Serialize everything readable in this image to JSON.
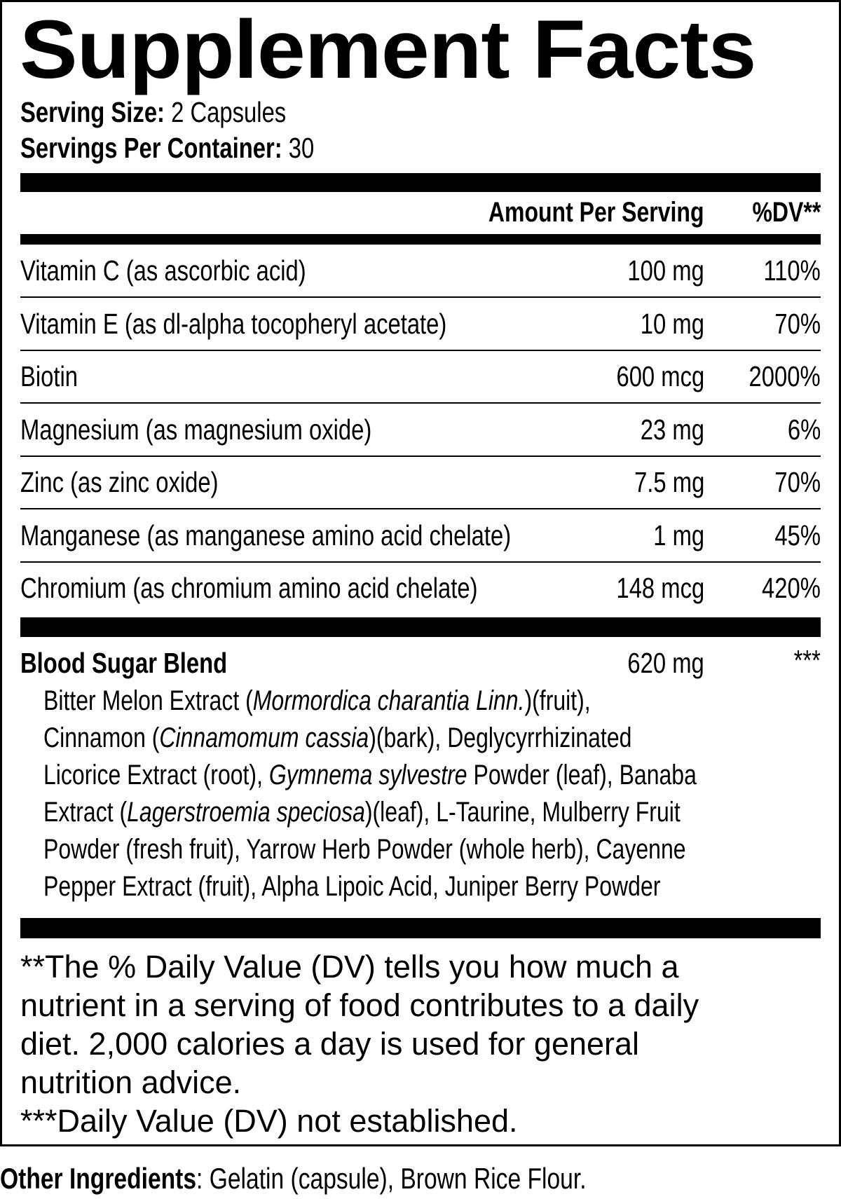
{
  "title": "Supplement Facts",
  "serving_size": {
    "label": "Serving Size:",
    "value": "2 Capsules"
  },
  "servings_per_container": {
    "label": "Servings Per Container:",
    "value": "30"
  },
  "header": {
    "amount": "Amount Per Serving",
    "dv": "%DV**"
  },
  "nutrients": [
    {
      "name": "Vitamin C (as ascorbic acid)",
      "amount": "100 mg",
      "dv": "110%"
    },
    {
      "name": "Vitamin E (as dl-alpha tocopheryl acetate)",
      "amount": "10 mg",
      "dv": "70%"
    },
    {
      "name": "Biotin",
      "amount": "600 mcg",
      "dv": "2000%"
    },
    {
      "name": "Magnesium (as magnesium oxide)",
      "amount": "23 mg",
      "dv": "6%"
    },
    {
      "name": "Zinc (as zinc oxide)",
      "amount": "7.5 mg",
      "dv": "70%"
    },
    {
      "name": "Manganese (as manganese amino acid chelate)",
      "amount": "1 mg",
      "dv": "45%"
    },
    {
      "name": "Chromium (as chromium amino acid chelate)",
      "amount": "148 mcg",
      "dv": "420%"
    }
  ],
  "blend": {
    "name": "Blood Sugar Blend",
    "amount": "620 mg",
    "dv": "***",
    "lines": [
      [
        {
          "t": "Bitter Melon Extract ("
        },
        {
          "t": "Mormordica charantia Linn.",
          "i": true
        },
        {
          "t": ")(fruit),"
        }
      ],
      [
        {
          "t": "Cinnamon ("
        },
        {
          "t": "Cinnamomum cassia",
          "i": true
        },
        {
          "t": ")(bark), Deglycyrrhizinated"
        }
      ],
      [
        {
          "t": "Licorice Extract (root), "
        },
        {
          "t": "Gymnema sylvestre",
          "i": true
        },
        {
          "t": " Powder (leaf), Banaba"
        }
      ],
      [
        {
          "t": "Extract ("
        },
        {
          "t": "Lagerstroemia speciosa",
          "i": true
        },
        {
          "t": ")(leaf), L-Taurine, Mulberry Fruit"
        }
      ],
      [
        {
          "t": "Powder (fresh fruit), Yarrow Herb Powder (whole herb), Cayenne"
        }
      ],
      [
        {
          "t": "Pepper Extract (fruit), Alpha Lipoic Acid, Juniper Berry Powder"
        }
      ]
    ]
  },
  "footnotes": [
    "**The % Daily Value (DV) tells you how much a",
    "nutrient in a serving of food contributes to a daily",
    "diet. 2,000 calories a day is used for general",
    "nutrition advice.",
    "***Daily Value (DV) not established."
  ],
  "other_ingredients": {
    "label": "Other Ingredients",
    "value": ": Gelatin (capsule), Brown Rice Flour."
  }
}
